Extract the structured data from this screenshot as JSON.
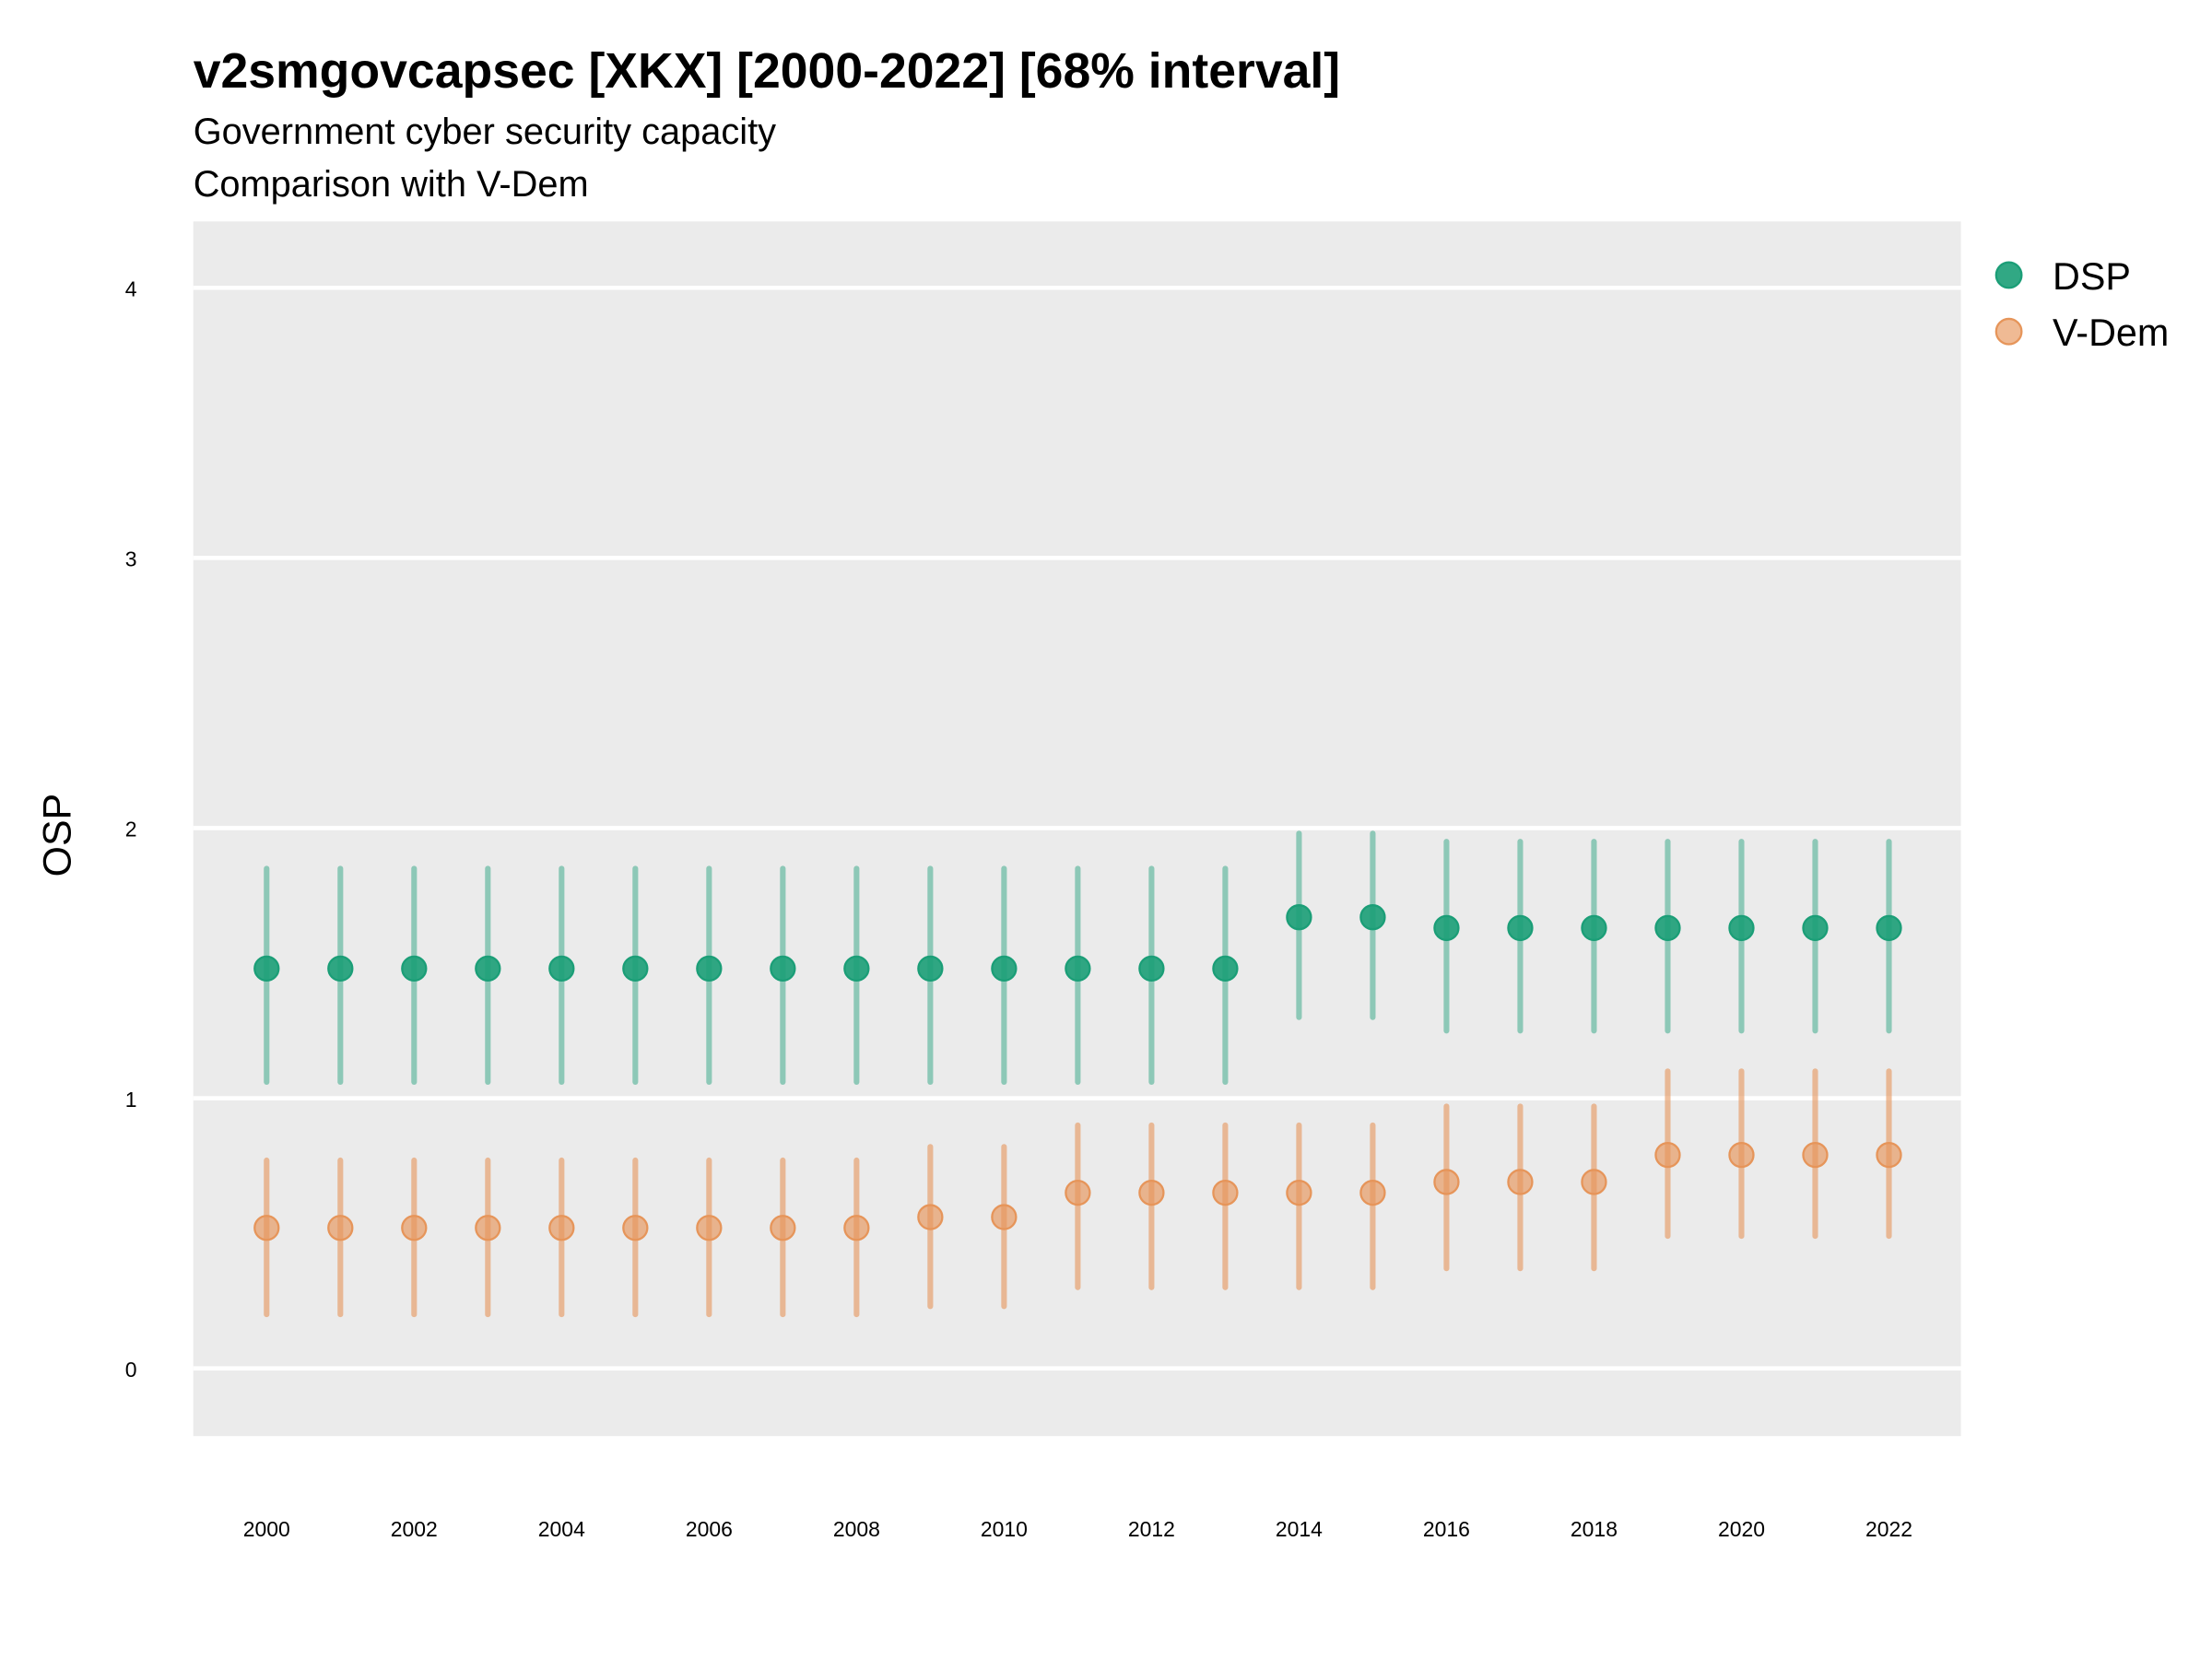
{
  "chart_data": {
    "type": "scatter",
    "title": "v2smgovcapsec [XKX] [2000-2022] [68% interval]",
    "subtitle": "Government cyber security capacity",
    "subtitle2": "Comparison with V-Dem",
    "xlabel": "",
    "ylabel": "OSP",
    "ylim": [
      -0.25,
      4.25
    ],
    "xlim": [
      1999,
      2023
    ],
    "yticks": [
      "0",
      "1",
      "2",
      "3",
      "4"
    ],
    "xticks": [
      "2000",
      "2002",
      "2004",
      "2006",
      "2008",
      "2010",
      "2012",
      "2014",
      "2016",
      "2018",
      "2020",
      "2022"
    ],
    "grid": true,
    "legend_position": "right",
    "x": [
      2000,
      2001,
      2002,
      2003,
      2004,
      2005,
      2006,
      2007,
      2008,
      2009,
      2010,
      2011,
      2012,
      2013,
      2014,
      2015,
      2016,
      2017,
      2018,
      2019,
      2020,
      2021,
      2022
    ],
    "series": [
      {
        "name": "DSP",
        "color": "#1b9e77",
        "values": [
          1.48,
          1.48,
          1.48,
          1.48,
          1.48,
          1.48,
          1.48,
          1.48,
          1.48,
          1.48,
          1.48,
          1.48,
          1.48,
          1.48,
          1.67,
          1.67,
          1.63,
          1.63,
          1.63,
          1.63,
          1.63,
          1.63,
          1.63
        ],
        "lower": [
          1.06,
          1.06,
          1.06,
          1.06,
          1.06,
          1.06,
          1.06,
          1.06,
          1.06,
          1.06,
          1.06,
          1.06,
          1.06,
          1.06,
          1.3,
          1.3,
          1.25,
          1.25,
          1.25,
          1.25,
          1.25,
          1.25,
          1.25
        ],
        "upper": [
          1.85,
          1.85,
          1.85,
          1.85,
          1.85,
          1.85,
          1.85,
          1.85,
          1.85,
          1.85,
          1.85,
          1.85,
          1.85,
          1.85,
          1.98,
          1.98,
          1.95,
          1.95,
          1.95,
          1.95,
          1.95,
          1.95,
          1.95
        ]
      },
      {
        "name": "V-Dem",
        "color": "#e6955a",
        "values": [
          0.52,
          0.52,
          0.52,
          0.52,
          0.52,
          0.52,
          0.52,
          0.52,
          0.52,
          0.56,
          0.56,
          0.65,
          0.65,
          0.65,
          0.65,
          0.65,
          0.69,
          0.69,
          0.69,
          0.79,
          0.79,
          0.79,
          0.79
        ],
        "lower": [
          0.2,
          0.2,
          0.2,
          0.2,
          0.2,
          0.2,
          0.2,
          0.2,
          0.2,
          0.23,
          0.23,
          0.3,
          0.3,
          0.3,
          0.3,
          0.3,
          0.37,
          0.37,
          0.37,
          0.49,
          0.49,
          0.49,
          0.49
        ],
        "upper": [
          0.77,
          0.77,
          0.77,
          0.77,
          0.77,
          0.77,
          0.77,
          0.77,
          0.77,
          0.82,
          0.82,
          0.9,
          0.9,
          0.9,
          0.9,
          0.9,
          0.97,
          0.97,
          0.97,
          1.1,
          1.1,
          1.1,
          1.1
        ]
      }
    ]
  }
}
